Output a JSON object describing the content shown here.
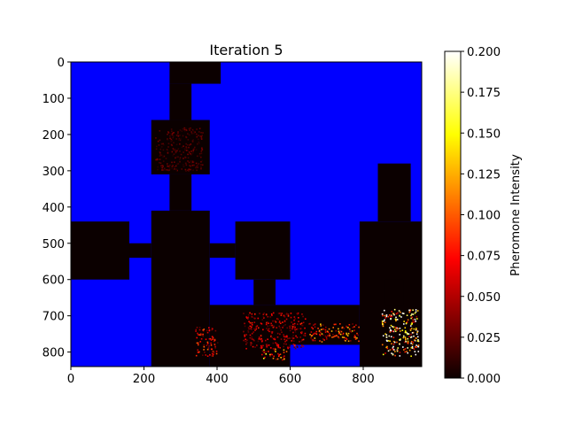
{
  "chart_data": {
    "type": "heatmap",
    "title": "Iteration 5",
    "xlabel": "",
    "ylabel": "",
    "xlim": [
      0,
      960
    ],
    "ylim": [
      840,
      0
    ],
    "x_ticks": [
      0,
      200,
      400,
      600,
      800
    ],
    "y_ticks": [
      0,
      100,
      200,
      300,
      400,
      500,
      600,
      700,
      800
    ],
    "grid": false,
    "colormap": "hot",
    "wall_color": "#0000ff",
    "colorbar": {
      "label": "Pheromone Intensity",
      "range": [
        0.0,
        0.2
      ],
      "ticks": [
        0.0,
        0.025,
        0.05,
        0.075,
        0.1,
        0.125,
        0.15,
        0.175,
        0.2
      ],
      "tick_labels": [
        "0.000",
        "0.025",
        "0.050",
        "0.075",
        "0.100",
        "0.125",
        "0.150",
        "0.175",
        "0.200"
      ]
    },
    "open_cells": [
      [
        270,
        0,
        410,
        60
      ],
      [
        270,
        60,
        330,
        160
      ],
      [
        220,
        160,
        380,
        310
      ],
      [
        270,
        310,
        330,
        410
      ],
      [
        220,
        410,
        380,
        840
      ],
      [
        0,
        440,
        160,
        600
      ],
      [
        160,
        500,
        220,
        540
      ],
      [
        380,
        500,
        450,
        540
      ],
      [
        450,
        440,
        600,
        600
      ],
      [
        500,
        600,
        560,
        670
      ],
      [
        380,
        670,
        600,
        840
      ],
      [
        600,
        670,
        790,
        780
      ],
      [
        790,
        440,
        960,
        840
      ],
      [
        840,
        280,
        930,
        440
      ],
      [
        860,
        600,
        910,
        670
      ]
    ],
    "pheromone_hotspots": [
      {
        "x": [
          850,
          950
        ],
        "y": [
          680,
          810
        ],
        "intensity": 0.15
      },
      {
        "x": [
          650,
          790
        ],
        "y": [
          720,
          770
        ],
        "intensity": 0.08
      },
      {
        "x": [
          470,
          640
        ],
        "y": [
          690,
          790
        ],
        "intensity": 0.05
      },
      {
        "x": [
          520,
          590
        ],
        "y": [
          790,
          820
        ],
        "intensity": 0.09
      },
      {
        "x": [
          340,
          400
        ],
        "y": [
          730,
          810
        ],
        "intensity": 0.06
      },
      {
        "x": [
          230,
          360
        ],
        "y": [
          180,
          300
        ],
        "intensity": 0.02
      }
    ]
  }
}
